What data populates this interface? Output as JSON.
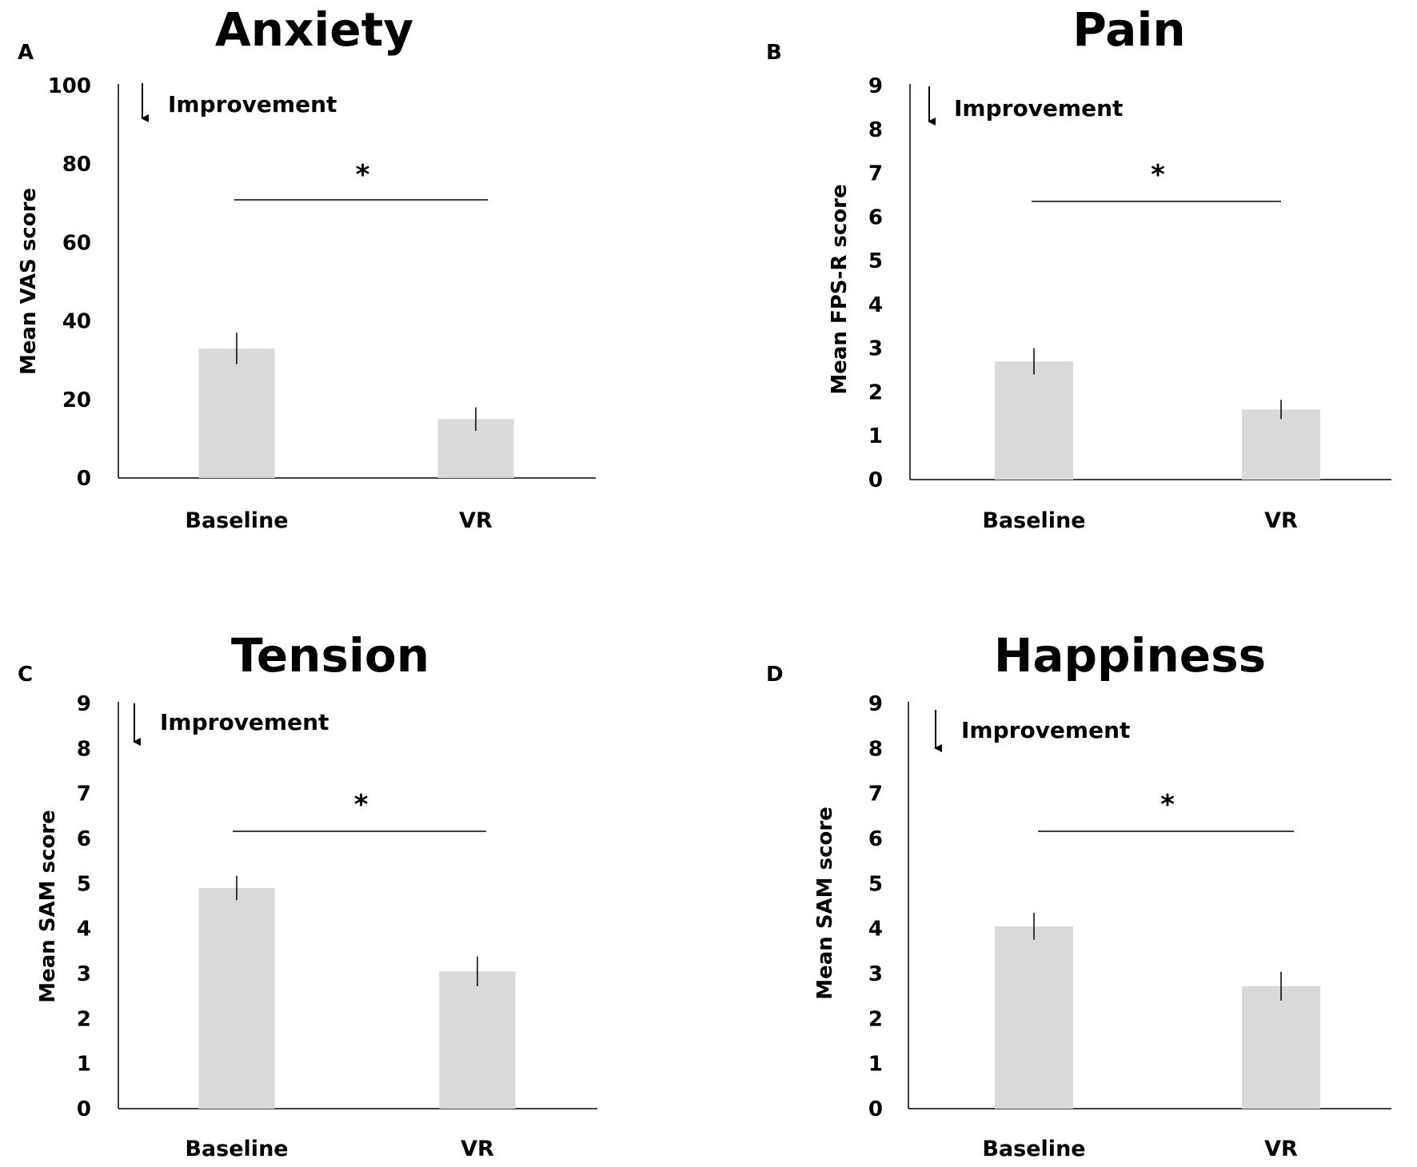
{
  "chart_data": [
    {
      "type": "bar",
      "panel_label": "A",
      "title": "Anxiety",
      "ylabel": "Mean VAS score",
      "xlabel": "",
      "categories": [
        "Baseline",
        "VR"
      ],
      "values": [
        33,
        15
      ],
      "error": [
        4,
        3
      ],
      "ylim": [
        0,
        100
      ],
      "yticks": [
        0,
        20,
        40,
        60,
        80,
        100
      ],
      "grid": false,
      "annotation": "Improvement",
      "annotation_icon": "down-arrow-icon",
      "significance": "*",
      "bar_color": "#d9d9d9"
    },
    {
      "type": "bar",
      "panel_label": "B",
      "title": "Pain",
      "ylabel": "Mean FPS-R score",
      "xlabel": "",
      "categories": [
        "Baseline",
        "VR"
      ],
      "values": [
        2.7,
        1.6
      ],
      "error": [
        0.3,
        0.22
      ],
      "ylim": [
        0,
        9
      ],
      "yticks": [
        0,
        1,
        2,
        3,
        4,
        5,
        6,
        7,
        8,
        9
      ],
      "grid": false,
      "annotation": "Improvement",
      "annotation_icon": "down-arrow-icon",
      "significance": "*",
      "bar_color": "#d9d9d9"
    },
    {
      "type": "bar",
      "panel_label": "C",
      "title": "Tension",
      "ylabel": "Mean SAM score",
      "xlabel": "",
      "categories": [
        "Baseline",
        "VR"
      ],
      "values": [
        4.9,
        3.05
      ],
      "error": [
        0.27,
        0.33
      ],
      "ylim": [
        0,
        9
      ],
      "yticks": [
        0,
        1,
        2,
        3,
        4,
        5,
        6,
        7,
        8,
        9
      ],
      "grid": false,
      "annotation": "Improvement",
      "annotation_icon": "down-arrow-icon",
      "significance": "*",
      "bar_color": "#d9d9d9"
    },
    {
      "type": "bar",
      "panel_label": "D",
      "title": "Happiness",
      "ylabel": "Mean SAM score",
      "xlabel": "",
      "categories": [
        "Baseline",
        "VR"
      ],
      "values": [
        4.05,
        2.72
      ],
      "error": [
        0.3,
        0.32
      ],
      "ylim": [
        0,
        9
      ],
      "yticks": [
        0,
        1,
        2,
        3,
        4,
        5,
        6,
        7,
        8,
        9
      ],
      "grid": false,
      "annotation": "Improvement",
      "annotation_icon": "down-arrow-icon",
      "significance": "*",
      "bar_color": "#d9d9d9"
    }
  ]
}
